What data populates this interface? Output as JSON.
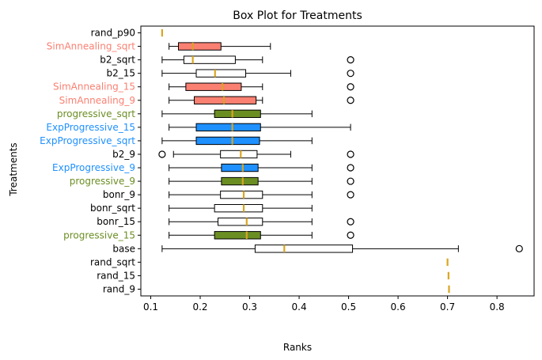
{
  "chart_data": {
    "type": "boxplot",
    "orientation": "horizontal",
    "title": "Box Plot for Treatments",
    "xlabel": "Ranks",
    "ylabel": "Treatments",
    "xlim": [
      0.08,
      0.875
    ],
    "xticks": [
      "0.1",
      "0.2",
      "0.3",
      "0.4",
      "0.5",
      "0.6",
      "0.7",
      "0.8"
    ],
    "xtick_values": [
      0.1,
      0.2,
      0.3,
      0.4,
      0.5,
      0.6,
      0.7,
      0.8
    ],
    "grid": false,
    "colors": {
      "sim": "#fa8072",
      "prog": "#6b8e23",
      "exp": "#1e90ff",
      "plain": "#ffffff",
      "median": "#daa520",
      "text_default": "#000000"
    },
    "series": [
      {
        "name": "rand_p90",
        "group": "plain",
        "whislo": 0.123,
        "q1": 0.123,
        "med": 0.123,
        "q3": 0.123,
        "whishi": 0.123,
        "fliers": []
      },
      {
        "name": "SimAnnealing_sqrt",
        "group": "sim",
        "whislo": 0.137,
        "q1": 0.156,
        "med": 0.185,
        "q3": 0.242,
        "whishi": 0.342,
        "fliers": []
      },
      {
        "name": "b2_sqrt",
        "group": "plain",
        "whislo": 0.123,
        "q1": 0.167,
        "med": 0.185,
        "q3": 0.271,
        "whishi": 0.326,
        "fliers": [
          0.504
        ]
      },
      {
        "name": "b2_15",
        "group": "plain",
        "whislo": 0.123,
        "q1": 0.192,
        "med": 0.23,
        "q3": 0.292,
        "whishi": 0.383,
        "fliers": [
          0.504
        ]
      },
      {
        "name": "SimAnnealing_15",
        "group": "sim",
        "whislo": 0.137,
        "q1": 0.171,
        "med": 0.245,
        "q3": 0.283,
        "whishi": 0.326,
        "fliers": [
          0.504
        ]
      },
      {
        "name": "SimAnnealing_9",
        "group": "sim",
        "whislo": 0.137,
        "q1": 0.188,
        "med": 0.248,
        "q3": 0.313,
        "whishi": 0.326,
        "fliers": [
          0.504
        ]
      },
      {
        "name": "progressive_sqrt",
        "group": "prog",
        "whislo": 0.123,
        "q1": 0.229,
        "med": 0.265,
        "q3": 0.322,
        "whishi": 0.426,
        "fliers": []
      },
      {
        "name": "ExpProgressive_15",
        "group": "exp",
        "whislo": 0.137,
        "q1": 0.192,
        "med": 0.265,
        "q3": 0.322,
        "whishi": 0.504,
        "fliers": []
      },
      {
        "name": "ExpProgressive_sqrt",
        "group": "exp",
        "whislo": 0.123,
        "q1": 0.192,
        "med": 0.265,
        "q3": 0.32,
        "whishi": 0.426,
        "fliers": []
      },
      {
        "name": "b2_9",
        "group": "plain",
        "whislo": 0.146,
        "q1": 0.241,
        "med": 0.282,
        "q3": 0.315,
        "whishi": 0.383,
        "fliers": [
          0.123,
          0.504
        ]
      },
      {
        "name": "ExpProgressive_9",
        "group": "exp",
        "whislo": 0.137,
        "q1": 0.243,
        "med": 0.286,
        "q3": 0.317,
        "whishi": 0.426,
        "fliers": [
          0.504
        ]
      },
      {
        "name": "progressive_9",
        "group": "prog",
        "whislo": 0.137,
        "q1": 0.243,
        "med": 0.286,
        "q3": 0.317,
        "whishi": 0.426,
        "fliers": [
          0.504
        ]
      },
      {
        "name": "bonr_9",
        "group": "plain",
        "whislo": 0.137,
        "q1": 0.241,
        "med": 0.288,
        "q3": 0.326,
        "whishi": 0.426,
        "fliers": [
          0.504
        ]
      },
      {
        "name": "bonr_sqrt",
        "group": "plain",
        "whislo": 0.137,
        "q1": 0.229,
        "med": 0.288,
        "q3": 0.326,
        "whishi": 0.426,
        "fliers": []
      },
      {
        "name": "bonr_15",
        "group": "plain",
        "whislo": 0.137,
        "q1": 0.236,
        "med": 0.294,
        "q3": 0.326,
        "whishi": 0.426,
        "fliers": [
          0.504
        ]
      },
      {
        "name": "progressive_15",
        "group": "prog",
        "whislo": 0.137,
        "q1": 0.229,
        "med": 0.294,
        "q3": 0.322,
        "whishi": 0.426,
        "fliers": [
          0.504
        ]
      },
      {
        "name": "base",
        "group": "plain",
        "whislo": 0.123,
        "q1": 0.311,
        "med": 0.37,
        "q3": 0.508,
        "whishi": 0.722,
        "fliers": [
          0.845
        ]
      },
      {
        "name": "rand_sqrt",
        "group": "plain",
        "whislo": 0.7,
        "q1": 0.7,
        "med": 0.7,
        "q3": 0.7,
        "whishi": 0.7,
        "fliers": []
      },
      {
        "name": "rand_15",
        "group": "plain",
        "whislo": 0.702,
        "q1": 0.702,
        "med": 0.702,
        "q3": 0.702,
        "whishi": 0.702,
        "fliers": []
      },
      {
        "name": "rand_9",
        "group": "plain",
        "whislo": 0.703,
        "q1": 0.703,
        "med": 0.703,
        "q3": 0.703,
        "whishi": 0.703,
        "fliers": []
      }
    ]
  }
}
